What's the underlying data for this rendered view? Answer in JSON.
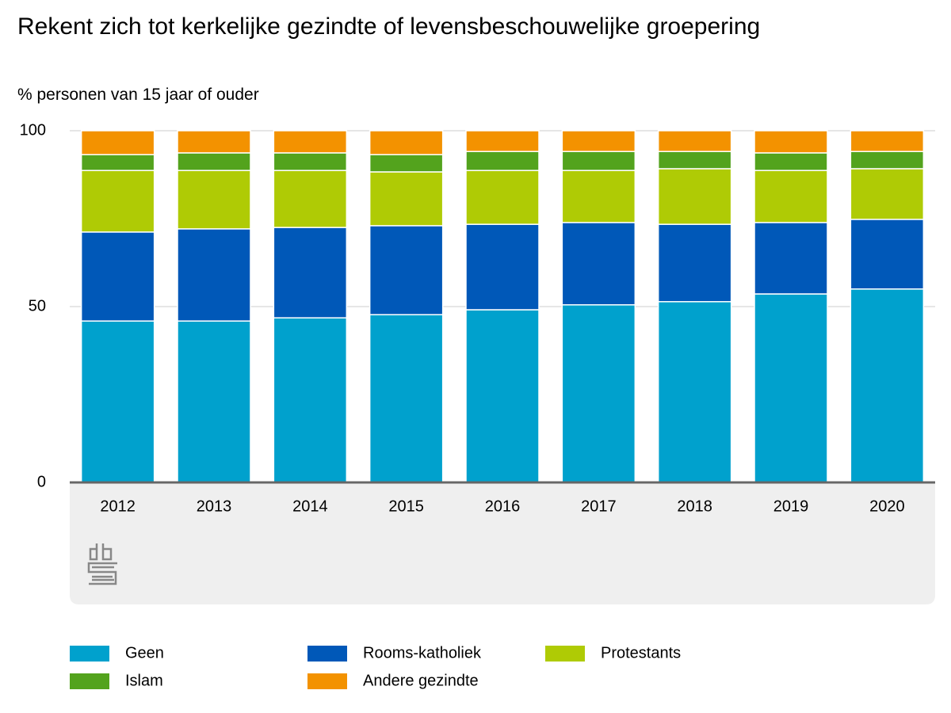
{
  "chart_data": {
    "type": "stacked-bar",
    "title": "Rekent zich tot kerkelijke gezindte of levensbeschouwelijke groepering",
    "subtitle": "% personen van 15 jaar of ouder",
    "categories": [
      "2012",
      "2013",
      "2014",
      "2015",
      "2016",
      "2017",
      "2018",
      "2019",
      "2020"
    ],
    "series": [
      {
        "name": "Geen",
        "color": "#00a1cd",
        "values": [
          45.9,
          45.9,
          46.8,
          47.7,
          49.1,
          50.5,
          51.4,
          53.6,
          55.0
        ]
      },
      {
        "name": "Rooms-katholiek",
        "color": "#0058b8",
        "values": [
          25.3,
          26.2,
          25.7,
          25.3,
          24.3,
          23.4,
          22.0,
          20.3,
          19.8
        ]
      },
      {
        "name": "Protestants",
        "color": "#afcb05",
        "values": [
          17.5,
          16.6,
          16.2,
          15.3,
          15.3,
          14.8,
          15.8,
          14.8,
          14.4
        ]
      },
      {
        "name": "Islam",
        "color": "#53a31d",
        "values": [
          4.5,
          5.0,
          5.0,
          4.9,
          5.4,
          5.4,
          4.9,
          5.0,
          4.9
        ]
      },
      {
        "name": "Andere gezindte",
        "color": "#f39200",
        "values": [
          6.8,
          6.3,
          6.3,
          6.8,
          5.9,
          5.9,
          5.9,
          6.3,
          5.9
        ]
      }
    ],
    "ylim": [
      0,
      100
    ],
    "yticks": [
      0,
      50,
      100
    ],
    "grid": true
  }
}
